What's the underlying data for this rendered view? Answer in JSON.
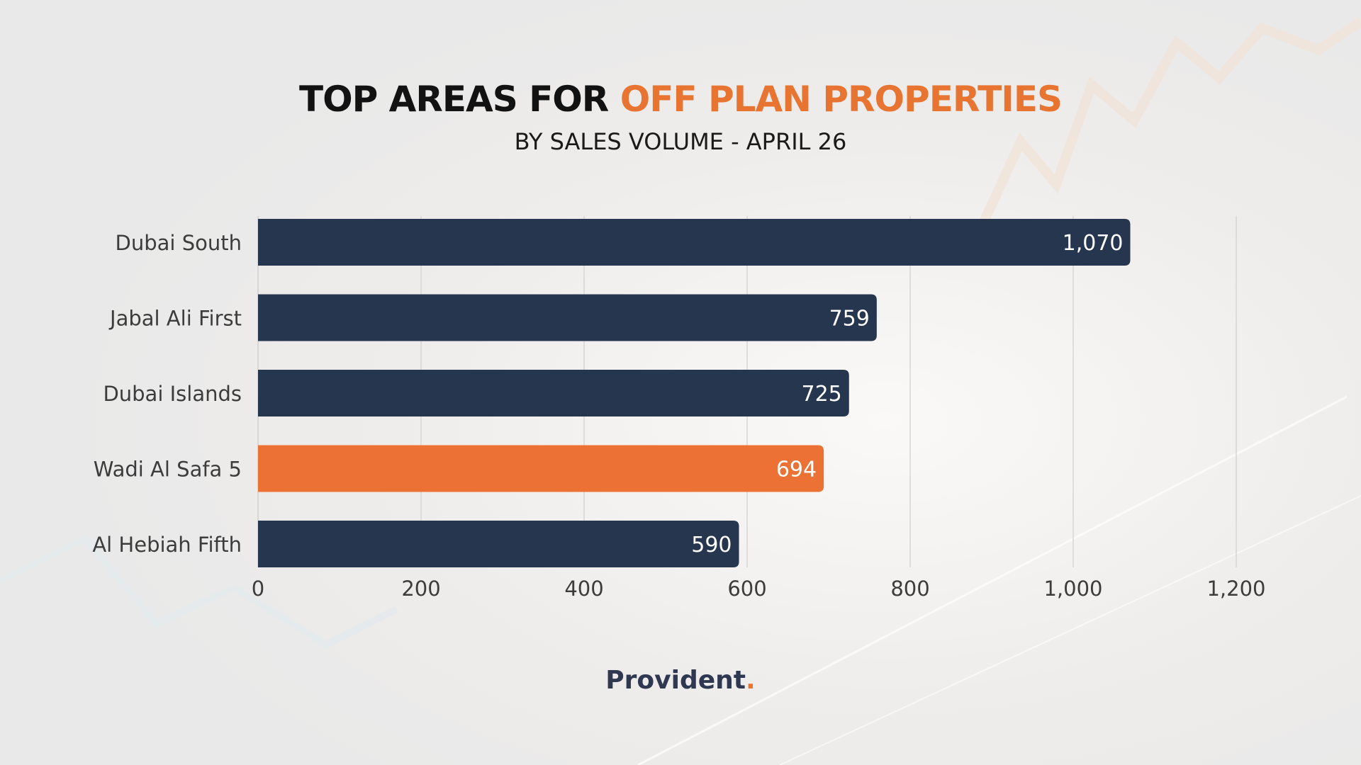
{
  "title": {
    "part1": "TOP AREAS FOR ",
    "part2": "OFF PLAN PROPERTIES",
    "subtitle": "BY SALES VOLUME - APRIL 26"
  },
  "brand": {
    "name": "Provident",
    "dot": "."
  },
  "colors": {
    "bar_default": "#26364f",
    "bar_highlight": "#eb7234",
    "title_accent": "#e87432",
    "text": "#3c3c3c"
  },
  "chart_data": {
    "type": "bar",
    "orientation": "horizontal",
    "categories": [
      "Dubai South",
      "Jabal Ali First",
      "Dubai Islands",
      "Wadi Al Safa 5",
      "Al Hebiah Fifth"
    ],
    "values": [
      1070,
      759,
      725,
      694,
      590
    ],
    "value_labels": [
      "1,070",
      "759",
      "725",
      "694",
      "590"
    ],
    "highlight_index": 3,
    "xlim": [
      0,
      1200
    ],
    "xticks": [
      0,
      200,
      400,
      600,
      800,
      1000,
      1200
    ],
    "xtick_labels": [
      "0",
      "200",
      "400",
      "600",
      "800",
      "1,000",
      "1,200"
    ],
    "grid": true,
    "legend": "none"
  }
}
